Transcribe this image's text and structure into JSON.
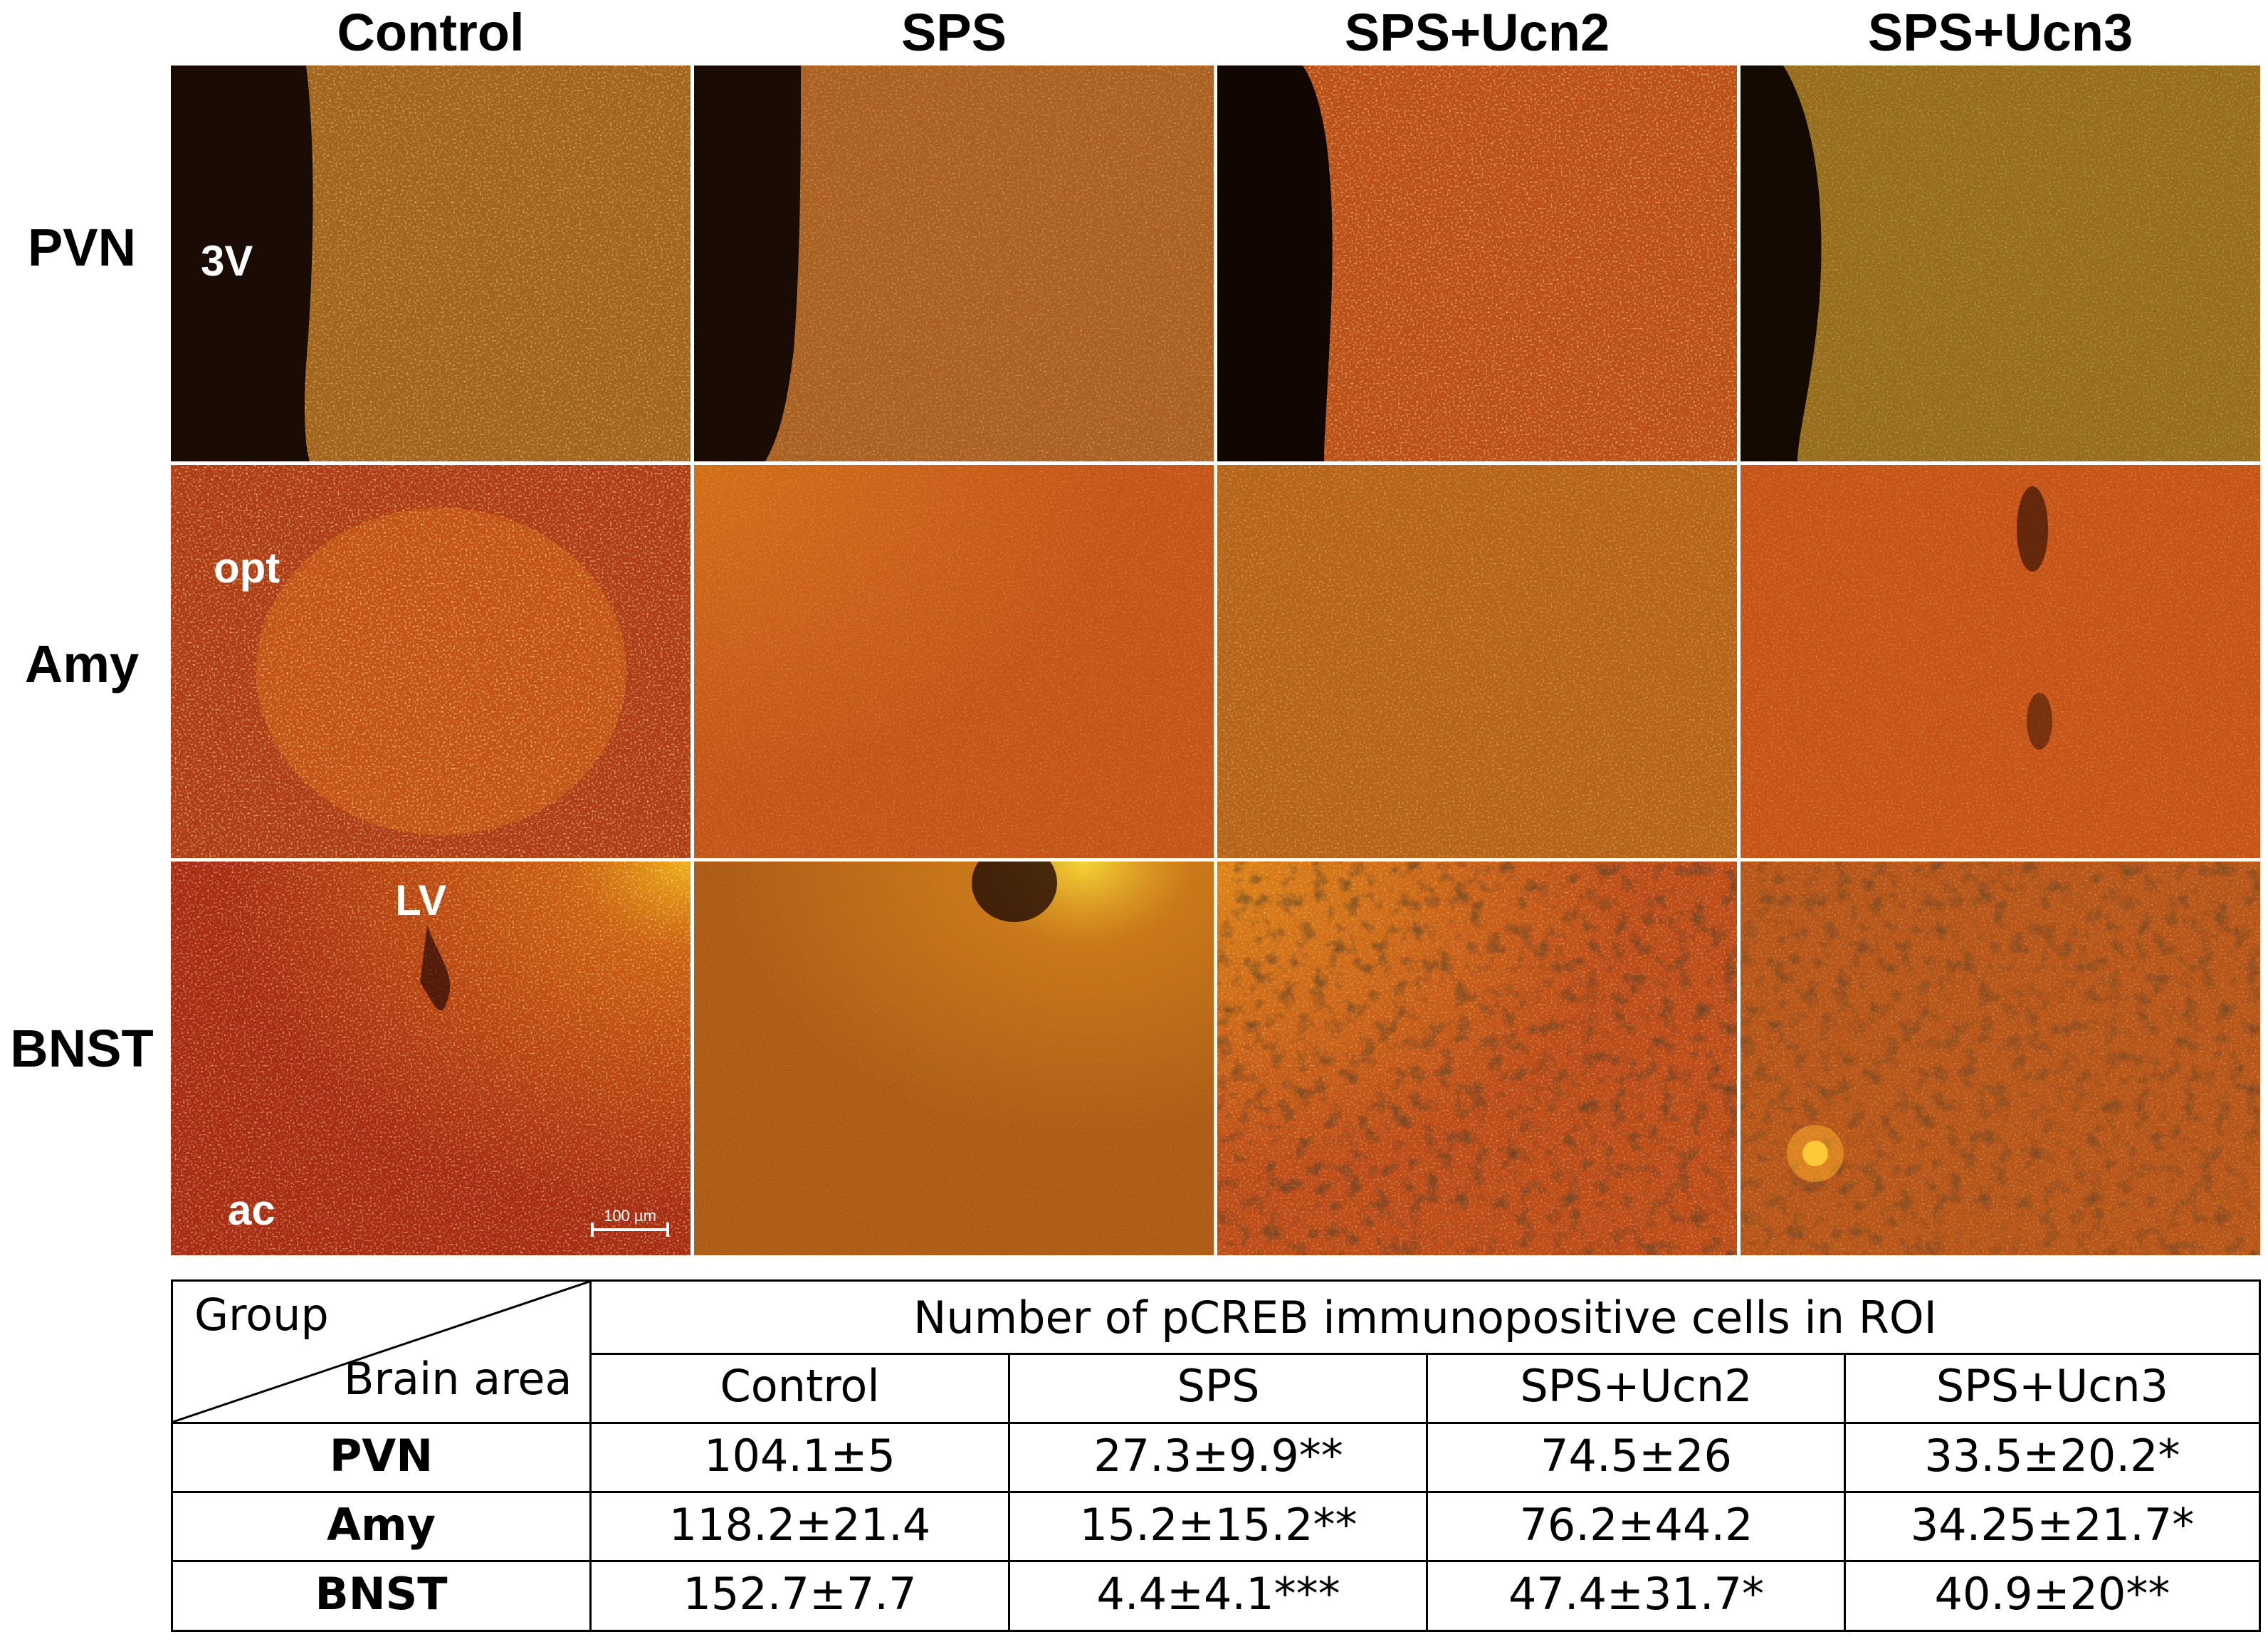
{
  "figure": {
    "columns": [
      "Control",
      "SPS",
      "SPS+Ucn2",
      "SPS+Ucn3"
    ],
    "rows": [
      "PVN",
      "Amy",
      "BNST"
    ],
    "panel_labels": {
      "pvn_control": "3V",
      "amy_control": "opt",
      "bnst_control_lv": "LV",
      "bnst_control_ac": "ac"
    },
    "scale_bar": "100 µm"
  },
  "table": {
    "corner_top": "Group",
    "corner_bottom": "Brain area",
    "title": "Number of pCREB immunopositive cells in ROI",
    "columns": [
      "Control",
      "SPS",
      "SPS+Ucn2",
      "SPS+Ucn3"
    ],
    "rows": [
      {
        "label": "PVN",
        "values": [
          "104.1±5",
          "27.3±9.9**",
          "74.5±26",
          "33.5±20.2*"
        ]
      },
      {
        "label": "Amy",
        "values": [
          "118.2±21.4",
          "15.2±15.2**",
          "76.2±44.2",
          "34.25±21.7*"
        ]
      },
      {
        "label": "BNST",
        "values": [
          "152.7±7.7",
          "4.4±4.1***",
          "47.4±31.7*",
          "40.9±20**"
        ]
      }
    ]
  },
  "colors": {
    "tissue_orange": "#c4540e",
    "tissue_red": "#b8300c",
    "tissue_olive": "#8a5a12",
    "ventricle_dark": "#1c0a04"
  }
}
